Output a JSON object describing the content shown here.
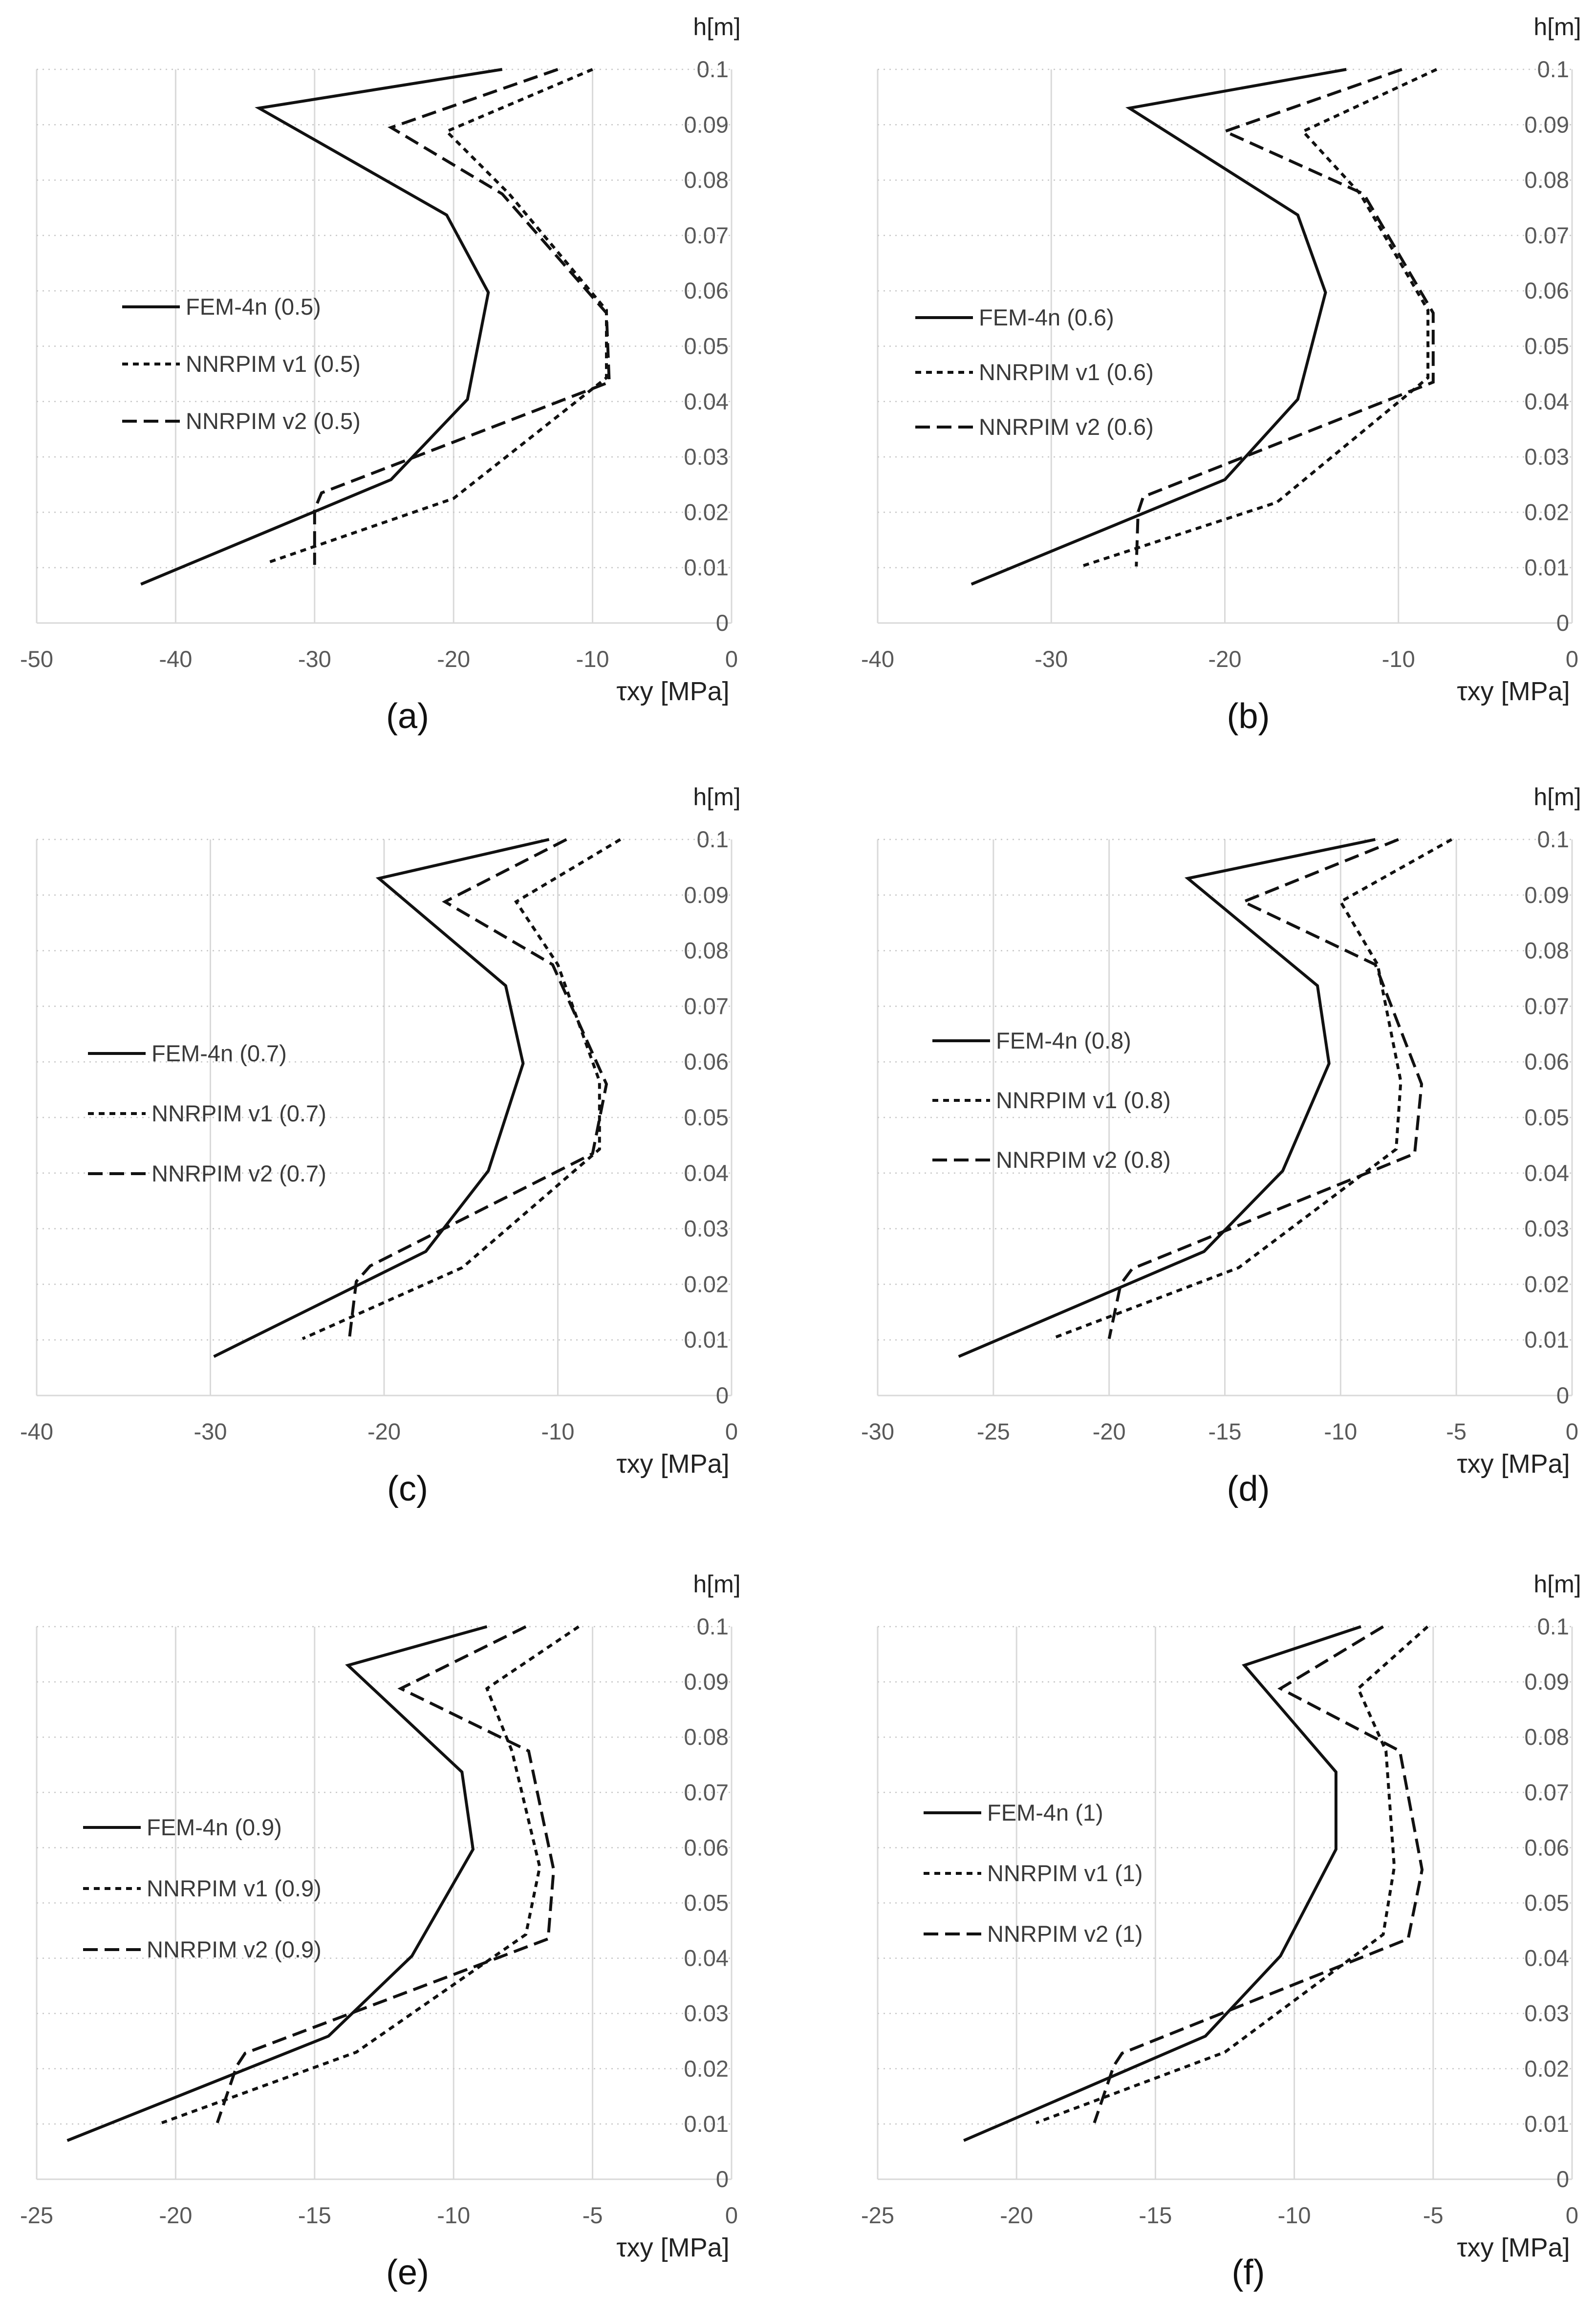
{
  "chart_data": [
    {
      "type": "line",
      "panel_label": "(a)",
      "xlabel": "τxy [MPa]",
      "ylabel": "h[m]",
      "xlim": [
        -50,
        0
      ],
      "ylim": [
        0,
        0.1
      ],
      "xticks": [
        "-50",
        "-40",
        "-30",
        "-20",
        "-10",
        "0"
      ],
      "yticks": [
        "0",
        "0.01",
        "0.02",
        "0.03",
        "0.04",
        "0.05",
        "0.06",
        "0.07",
        "0.08",
        "0.09",
        "0.1"
      ],
      "xticks_values": [
        -50,
        -40,
        -30,
        -20,
        -10,
        0
      ],
      "grid": true,
      "legend": "left",
      "series": [
        {
          "name": "FEM-4n (0.5)",
          "style": "solid",
          "x": [
            -16.5,
            -34,
            -20.5,
            -17.5,
            -19,
            -24.5,
            -42.5
          ],
          "y": [
            0.1,
            0.093,
            0.0737,
            0.0597,
            0.0404,
            0.0259,
            0.007
          ]
        },
        {
          "name": "NNRPIM v1 (0.5)",
          "style": "dot",
          "x": [
            -10,
            -20.5,
            -16,
            -9,
            -9,
            -20,
            -33.5
          ],
          "y": [
            0.1,
            0.0888,
            0.0775,
            0.0565,
            0.0443,
            0.0225,
            0.0108
          ]
        },
        {
          "name": "NNRPIM v2 (0.5)",
          "style": "dash",
          "x": [
            -12.5,
            -24.5,
            -16.5,
            -9,
            -8.8,
            -29.5,
            -30,
            -30
          ],
          "y": [
            0.1,
            0.0895,
            0.0775,
            0.056,
            0.0435,
            0.0235,
            0.0205,
            0.0105
          ]
        }
      ]
    },
    {
      "type": "line",
      "panel_label": "(b)",
      "xlabel": "τxy [MPa]",
      "ylabel": "h[m]",
      "xlim": [
        -40,
        0
      ],
      "ylim": [
        0,
        0.1
      ],
      "xticks": [
        "-40",
        "-30",
        "-20",
        "-10",
        "0"
      ],
      "yticks": [
        "0",
        "0.01",
        "0.02",
        "0.03",
        "0.04",
        "0.05",
        "0.06",
        "0.07",
        "0.08",
        "0.09",
        "0.1"
      ],
      "xticks_values": [
        -40,
        -30,
        -20,
        -10,
        0
      ],
      "grid": true,
      "legend": "left",
      "series": [
        {
          "name": "FEM-4n (0.6)",
          "style": "solid",
          "x": [
            -13,
            -25.5,
            -15.8,
            -14.2,
            -15.8,
            -20,
            -34.6
          ],
          "y": [
            0.1,
            0.093,
            0.0737,
            0.0597,
            0.0404,
            0.0259,
            0.007
          ]
        },
        {
          "name": "NNRPIM v1 (0.6)",
          "style": "dot",
          "x": [
            -7.8,
            -15.5,
            -12.2,
            -8.3,
            -8.3,
            -17,
            -28.3
          ],
          "y": [
            0.1,
            0.0888,
            0.0775,
            0.0565,
            0.0443,
            0.0218,
            0.0102
          ]
        },
        {
          "name": "NNRPIM v2 (0.6)",
          "style": "dash",
          "x": [
            -9.8,
            -20,
            -12,
            -8,
            -8,
            -24.7,
            -25,
            -25.1
          ],
          "y": [
            0.1,
            0.0888,
            0.0775,
            0.056,
            0.0435,
            0.0228,
            0.02,
            0.0102
          ]
        }
      ]
    },
    {
      "type": "line",
      "panel_label": "(c)",
      "xlabel": "τxy [MPa]",
      "ylabel": "h[m]",
      "xlim": [
        -40,
        0
      ],
      "ylim": [
        0,
        0.1
      ],
      "xticks": [
        "-40",
        "-30",
        "-20",
        "-10",
        "0"
      ],
      "yticks": [
        "0",
        "0.01",
        "0.02",
        "0.03",
        "0.04",
        "0.05",
        "0.06",
        "0.07",
        "0.08",
        "0.09",
        "0.1"
      ],
      "xticks_values": [
        -40,
        -30,
        -20,
        -10,
        0
      ],
      "grid": true,
      "legend": "left",
      "series": [
        {
          "name": "FEM-4n (0.7)",
          "style": "solid",
          "x": [
            -10.5,
            -20.3,
            -13,
            -12,
            -14,
            -17.6,
            -29.8
          ],
          "y": [
            0.1,
            0.093,
            0.0737,
            0.0597,
            0.0404,
            0.0259,
            0.007
          ]
        },
        {
          "name": "NNRPIM v1 (0.7)",
          "style": "dot",
          "x": [
            -6.4,
            -12.4,
            -10,
            -7.6,
            -7.6,
            -15.5,
            -24.7
          ],
          "y": [
            0.1,
            0.0888,
            0.0775,
            0.0565,
            0.0443,
            0.023,
            0.0102
          ]
        },
        {
          "name": "NNRPIM v2 (0.7)",
          "style": "dash",
          "x": [
            -9.5,
            -16.5,
            -10.3,
            -7.2,
            -8,
            -20.8,
            -21.6,
            -22
          ],
          "y": [
            0.1,
            0.0888,
            0.0775,
            0.056,
            0.0435,
            0.0233,
            0.0205,
            0.0102
          ]
        }
      ]
    },
    {
      "type": "line",
      "panel_label": "(d)",
      "xlabel": "τxy [MPa]",
      "ylabel": "h[m]",
      "xlim": [
        -30,
        0
      ],
      "ylim": [
        0,
        0.1
      ],
      "xticks": [
        "-30",
        "-25",
        "-20",
        "-15",
        "-10",
        "-5",
        "0"
      ],
      "yticks": [
        "0",
        "0.01",
        "0.02",
        "0.03",
        "0.04",
        "0.05",
        "0.06",
        "0.07",
        "0.08",
        "0.09",
        "0.1"
      ],
      "xticks_values": [
        -30,
        -25,
        -20,
        -15,
        -10,
        -5,
        0
      ],
      "grid": true,
      "legend": "left",
      "series": [
        {
          "name": "FEM-4n (0.8)",
          "style": "solid",
          "x": [
            -8.5,
            -16.6,
            -11,
            -10.5,
            -12.5,
            -15.9,
            -26.5
          ],
          "y": [
            0.1,
            0.093,
            0.0737,
            0.0597,
            0.0404,
            0.0259,
            0.007
          ]
        },
        {
          "name": "NNRPIM v1 (0.8)",
          "style": "dot",
          "x": [
            -5.2,
            -10,
            -8.4,
            -7.4,
            -7.6,
            -14.4,
            -22.5
          ],
          "y": [
            0.1,
            0.0888,
            0.0775,
            0.0565,
            0.0443,
            0.023,
            0.0102
          ]
        },
        {
          "name": "NNRPIM v2 (0.8)",
          "style": "dash",
          "x": [
            -7.5,
            -14.2,
            -8.5,
            -6.5,
            -6.8,
            -19,
            -19.5,
            -20
          ],
          "y": [
            0.1,
            0.0888,
            0.0775,
            0.056,
            0.0435,
            0.0228,
            0.02,
            0.0102
          ]
        }
      ]
    },
    {
      "type": "line",
      "panel_label": "(e)",
      "xlabel": "τxy [MPa]",
      "ylabel": "h[m]",
      "xlim": [
        -25,
        0
      ],
      "ylim": [
        0,
        0.1
      ],
      "xticks": [
        "-25",
        "-20",
        "-15",
        "-10",
        "-5",
        "0"
      ],
      "yticks": [
        "0",
        "0.01",
        "0.02",
        "0.03",
        "0.04",
        "0.05",
        "0.06",
        "0.07",
        "0.08",
        "0.09",
        "0.1"
      ],
      "xticks_values": [
        -25,
        -20,
        -15,
        -10,
        -5,
        0
      ],
      "grid": true,
      "legend": "left",
      "series": [
        {
          "name": "FEM-4n (0.9)",
          "style": "solid",
          "x": [
            -8.8,
            -13.8,
            -9.7,
            -9.3,
            -11.5,
            -14.5,
            -23.9
          ],
          "y": [
            0.1,
            0.093,
            0.0737,
            0.0597,
            0.0404,
            0.0259,
            0.007
          ]
        },
        {
          "name": "NNRPIM v1 (0.9)",
          "style": "dot",
          "x": [
            -5.5,
            -8.8,
            -7.9,
            -6.9,
            -7.4,
            -13.5,
            -20.5
          ],
          "y": [
            0.1,
            0.0888,
            0.0775,
            0.0565,
            0.0443,
            0.023,
            0.0102
          ]
        },
        {
          "name": "NNRPIM v2 (0.9)",
          "style": "dash",
          "x": [
            -7.4,
            -11.9,
            -7.3,
            -6.4,
            -6.6,
            -17.5,
            -17.8,
            -18.5
          ],
          "y": [
            0.1,
            0.0888,
            0.0775,
            0.056,
            0.0435,
            0.0228,
            0.0205,
            0.0102
          ]
        }
      ]
    },
    {
      "type": "line",
      "panel_label": "(f)",
      "xlabel": "τxy [MPa]",
      "ylabel": "h[m]",
      "xlim": [
        -25,
        0
      ],
      "ylim": [
        0,
        0.1
      ],
      "xticks": [
        "-25",
        "-20",
        "-15",
        "-10",
        "-5",
        "0"
      ],
      "yticks": [
        "0",
        "0.01",
        "0.02",
        "0.03",
        "0.04",
        "0.05",
        "0.06",
        "0.07",
        "0.08",
        "0.09",
        "0.1"
      ],
      "xticks_values": [
        -25,
        -20,
        -15,
        -10,
        -5,
        0
      ],
      "grid": true,
      "legend": "left",
      "series": [
        {
          "name": "FEM-4n (1)",
          "style": "solid",
          "x": [
            -7.6,
            -11.8,
            -8.5,
            -8.5,
            -10.5,
            -13.2,
            -21.9
          ],
          "y": [
            0.1,
            0.093,
            0.0737,
            0.0597,
            0.0404,
            0.0259,
            0.007
          ]
        },
        {
          "name": "NNRPIM v1 (1)",
          "style": "dot",
          "x": [
            -5.2,
            -7.7,
            -6.7,
            -6.4,
            -6.8,
            -12.5,
            -19.3
          ],
          "y": [
            0.1,
            0.0888,
            0.0775,
            0.0565,
            0.0443,
            0.023,
            0.0102
          ]
        },
        {
          "name": "NNRPIM v2 (1)",
          "style": "dash",
          "x": [
            -6.8,
            -10.5,
            -6.2,
            -5.4,
            -5.9,
            -16.2,
            -16.5,
            -17.2
          ],
          "y": [
            0.1,
            0.0888,
            0.0775,
            0.056,
            0.0435,
            0.0228,
            0.0205,
            0.0102
          ]
        }
      ]
    }
  ]
}
